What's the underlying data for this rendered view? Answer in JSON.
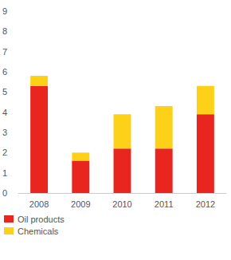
{
  "chart_data": {
    "type": "bar",
    "stacked": true,
    "grid": false,
    "legend": "bottom-left",
    "categories": [
      "2008",
      "2009",
      "2010",
      "2011",
      "2012"
    ],
    "series": [
      {
        "name": "Oil products",
        "color": "#e8251f",
        "values": [
          5.3,
          1.6,
          2.2,
          2.2,
          3.9
        ]
      },
      {
        "name": "Chemicals",
        "color": "#fcd117",
        "values": [
          0.5,
          0.4,
          1.7,
          2.1,
          1.4
        ]
      }
    ],
    "ylim": [
      0,
      9
    ],
    "yticks": [
      0,
      1,
      2,
      3,
      4,
      5,
      6,
      7,
      8,
      9
    ]
  }
}
